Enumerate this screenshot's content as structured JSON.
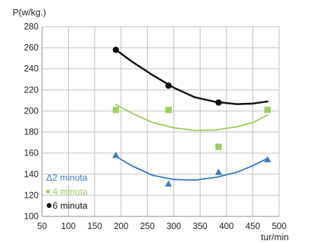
{
  "chart_data": {
    "type": "scatter",
    "title": "",
    "ylabel": "P(w/kg.)",
    "xlabel": "tur/min",
    "xlim": [
      50,
      500
    ],
    "ylim": [
      100,
      280
    ],
    "xticks": [
      50,
      100,
      150,
      200,
      250,
      300,
      350,
      400,
      450,
      500
    ],
    "yticks": [
      100,
      120,
      140,
      160,
      180,
      200,
      220,
      240,
      260,
      280
    ],
    "grid": true,
    "legend_position": "left",
    "series": [
      {
        "name": "Δ2 minuta",
        "legend_label": "Δ2 minuta",
        "color": "#3a7dc4",
        "marker": "triangle",
        "x": [
          190,
          290,
          385,
          478
        ],
        "y": [
          158,
          131,
          142,
          154
        ],
        "trend": [
          [
            190,
            157
          ],
          [
            220,
            148
          ],
          [
            260,
            139
          ],
          [
            300,
            135
          ],
          [
            340,
            134.5
          ],
          [
            380,
            137
          ],
          [
            420,
            142
          ],
          [
            450,
            148
          ],
          [
            478,
            155
          ]
        ]
      },
      {
        "name": "4 minuta",
        "legend_label": "4 minuta",
        "color": "#9bcf5e",
        "marker": "square",
        "x": [
          190,
          290,
          385,
          478
        ],
        "y": [
          201,
          201,
          166,
          201
        ],
        "trend": [
          [
            190,
            206
          ],
          [
            220,
            198
          ],
          [
            260,
            189
          ],
          [
            300,
            184
          ],
          [
            340,
            181.5
          ],
          [
            380,
            182
          ],
          [
            420,
            185
          ],
          [
            450,
            189
          ],
          [
            478,
            196
          ]
        ]
      },
      {
        "name": "6 minuta",
        "legend_label": "6 minuta",
        "color": "#111111",
        "marker": "circle",
        "x": [
          190,
          290,
          385
        ],
        "y": [
          258,
          224,
          208
        ],
        "trend": [
          [
            190,
            258
          ],
          [
            220,
            247
          ],
          [
            260,
            234
          ],
          [
            300,
            222
          ],
          [
            340,
            213
          ],
          [
            380,
            208.5
          ],
          [
            420,
            206.5
          ],
          [
            450,
            207
          ],
          [
            478,
            209
          ]
        ]
      }
    ]
  }
}
